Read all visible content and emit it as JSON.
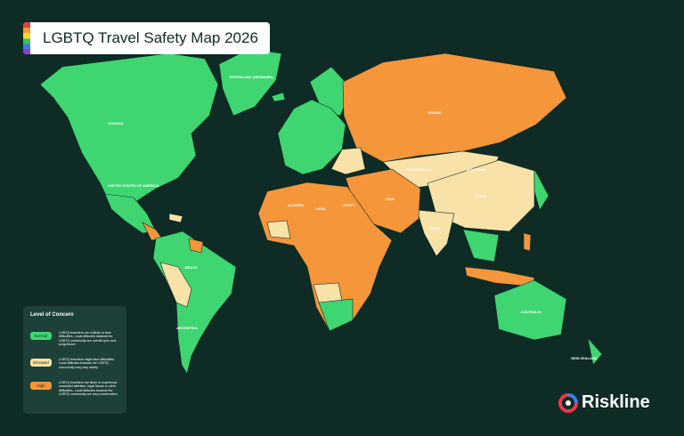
{
  "header": {
    "title": "LGBTQ Travel Safety Map 2026"
  },
  "legend": {
    "title": "Level of Concern",
    "items": [
      {
        "label": "Normal",
        "color": "#3fd672",
        "description": "LGBTQ travellers are unlikely to face difficulties. Local attitudes towards the LGBTQ community are overall open and progressive."
      },
      {
        "label": "Elevated",
        "color": "#f8e2a8",
        "description": "LGBTQ travellers might face difficulties. Local attitudes towards the LGBTQ community may vary widely."
      },
      {
        "label": "High",
        "color": "#f5963b",
        "description": "LGBTQ travellers are likely to experience unwanted attention, legal issues or other difficulties. Local attitudes towards the LGBTQ community are very conservative."
      }
    ]
  },
  "map": {
    "labels": [
      "CANADA",
      "UNITED STATES OF AMERICA",
      "GREENLAND (DENMARK)",
      "BRAZIL",
      "ARGENTINA",
      "RUSSIA",
      "CHINA",
      "KAZAKHSTAN",
      "MONGOLIA",
      "INDIA",
      "IRAN",
      "ALGERIA",
      "LIBYA",
      "EGYPT",
      "AUSTRALIA",
      "NEW ZEALAND"
    ]
  },
  "brand": {
    "name": "Riskline"
  }
}
